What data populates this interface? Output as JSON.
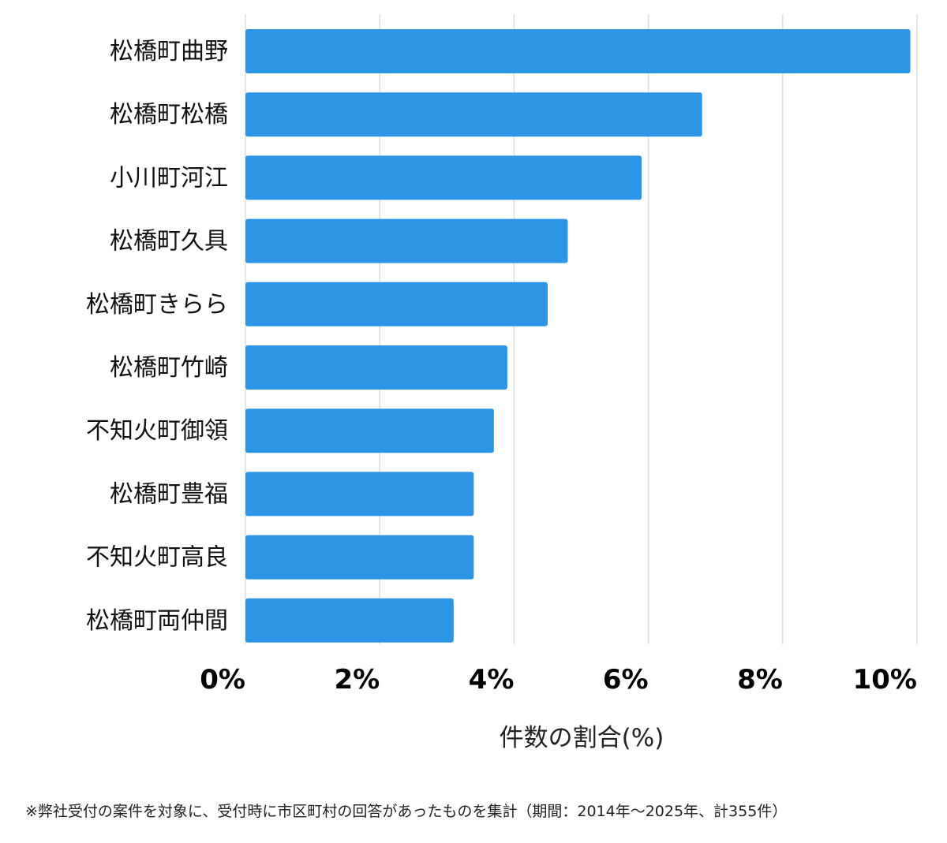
{
  "chart_data": {
    "type": "bar",
    "orientation": "horizontal",
    "categories": [
      "松橋町曲野",
      "松橋町松橋",
      "小川町河江",
      "松橋町久具",
      "松橋町きらら",
      "松橋町竹崎",
      "不知火町御領",
      "松橋町豊福",
      "不知火町高良",
      "松橋町両仲間"
    ],
    "values": [
      9.9,
      6.8,
      5.9,
      4.8,
      4.5,
      3.9,
      3.7,
      3.4,
      3.4,
      3.1
    ],
    "xlim": [
      0,
      10
    ],
    "xticks": [
      0,
      2,
      4,
      6,
      8,
      10
    ],
    "xtick_labels": [
      "0%",
      "2%",
      "4%",
      "6%",
      "8%",
      "10%"
    ],
    "xlabel": "件数の割合(%)",
    "ylabel": "",
    "title": "",
    "grid": "vertical",
    "bar_color": "#2c95e6",
    "grid_color": "#dddddd"
  },
  "footnote": "※弊社受付の案件を対象に、受付時に市区町村の回答があったものを集計（期間：2014年～2025年、計355件）"
}
